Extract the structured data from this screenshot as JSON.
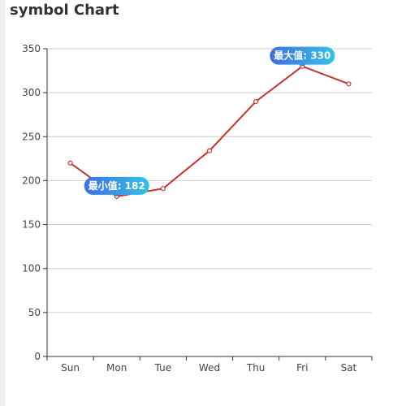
{
  "title": "symbol Chart",
  "chart_data": {
    "type": "line",
    "title": "symbol Chart",
    "categories": [
      "Sun",
      "Mon",
      "Tue",
      "Wed",
      "Thu",
      "Fri",
      "Sat"
    ],
    "series": [
      {
        "values": [
          220,
          182,
          191,
          234,
          290,
          330,
          310
        ]
      }
    ],
    "ylim": [
      0,
      350
    ],
    "yticks": [
      0,
      50,
      100,
      150,
      200,
      250,
      300,
      350
    ],
    "grid": true,
    "markers": [
      {
        "label": "最小值: 182",
        "category": "Mon",
        "value": 182
      },
      {
        "label": "最大值: 330",
        "category": "Fri",
        "value": 330
      }
    ],
    "colors": {
      "line": "#c23531",
      "grid": "#cccccc",
      "axis": "#333333",
      "marker_start": "#3f6fe0",
      "marker_end": "#33c3e6"
    }
  }
}
